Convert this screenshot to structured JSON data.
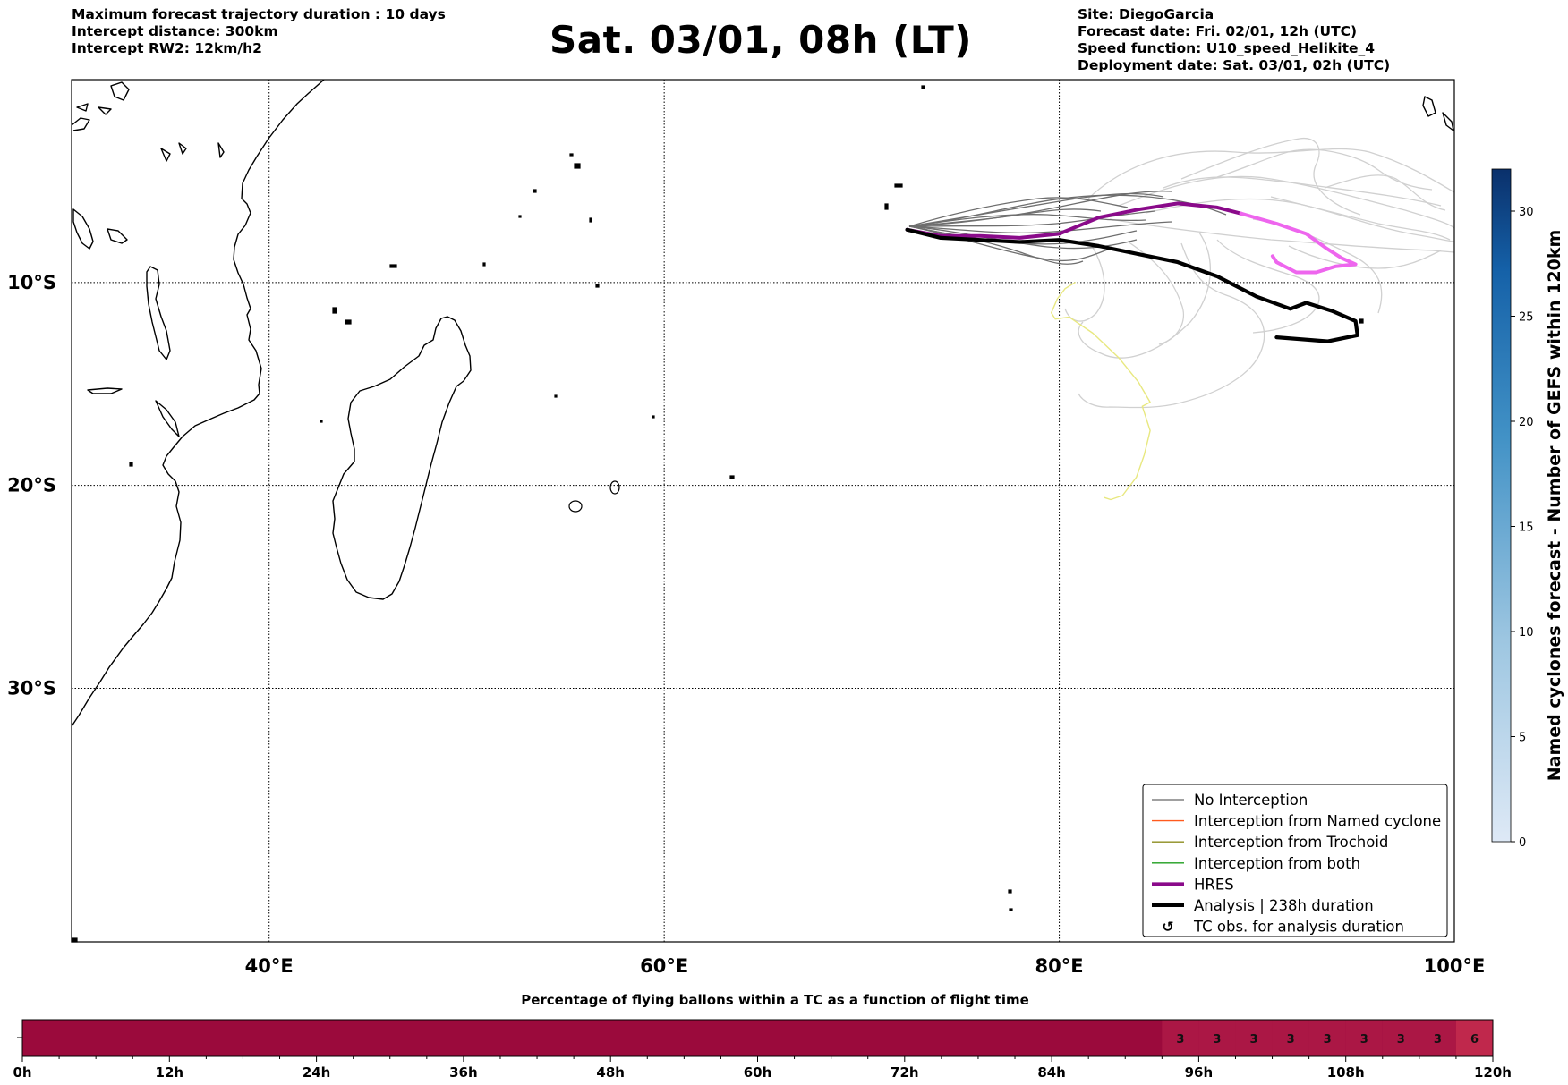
{
  "header": {
    "title": "Sat. 03/01, 08h (LT)",
    "left_lines": [
      "Maximum forecast trajectory duration : 10 days",
      "Intercept distance: 300km",
      "Intercept RW2: 12km/h2"
    ],
    "right_lines": [
      "Site: DiegoGarcia",
      "Forecast date: Fri. 02/01, 12h (UTC)",
      "Speed function: U10_speed_Helikite_4",
      "Deployment date: Sat. 03/01, 02h (UTC)"
    ]
  },
  "chart_data": [
    {
      "type": "map",
      "lon_range": [
        30,
        100
      ],
      "lat_range": [
        -42.5,
        0
      ],
      "x_ticks": [
        {
          "value": 40,
          "label": "40°E"
        },
        {
          "value": 60,
          "label": "60°E"
        },
        {
          "value": 80,
          "label": "80°E"
        },
        {
          "value": 100,
          "label": "100°E"
        }
      ],
      "y_ticks": [
        {
          "value": -10,
          "label": "10°S"
        },
        {
          "value": -20,
          "label": "20°S"
        },
        {
          "value": -30,
          "label": "30°S"
        }
      ],
      "gridlines": true,
      "legend": {
        "placement": "bottom-right",
        "items": [
          {
            "label": "No Interception",
            "color": "#808080",
            "style": "thin-line"
          },
          {
            "label": "Interception from Named cyclone",
            "color": "#ff5a1e",
            "style": "thin-line"
          },
          {
            "label": "Interception from Trochoid",
            "color": "#8c8c1e",
            "style": "thin-line"
          },
          {
            "label": "Interception from both",
            "color": "#1e9e1e",
            "style": "thin-line"
          },
          {
            "label": "HRES",
            "color": "#8a0a8a",
            "style": "thick-line"
          },
          {
            "label": "Analysis | 238h duration",
            "color": "#000000",
            "style": "thick-line"
          },
          {
            "label": "TC obs. for analysis duration",
            "color": "#000000",
            "style": "symbol",
            "symbol": "↺"
          }
        ]
      },
      "series": [
        {
          "name": "HRES",
          "color": "#8a0a8a",
          "points": [
            [
              72.3,
              -7.4
            ],
            [
              74,
              -7.7
            ],
            [
              76,
              -7.7
            ],
            [
              78,
              -7.8
            ],
            [
              80,
              -7.6
            ],
            [
              82,
              -6.8
            ],
            [
              84,
              -6.4
            ],
            [
              86,
              -6.1
            ],
            [
              88,
              -6.3
            ],
            [
              89.2,
              -6.6
            ]
          ]
        },
        {
          "name": "HRES (after TC window)",
          "color": "#ee66ee",
          "points": [
            [
              89.2,
              -6.6
            ],
            [
              91,
              -7.1
            ],
            [
              92.5,
              -7.6
            ],
            [
              93.5,
              -8.3
            ],
            [
              94.3,
              -8.8
            ],
            [
              95,
              -9.1
            ],
            [
              94,
              -9.2
            ],
            [
              93,
              -9.5
            ],
            [
              92,
              -9.5
            ],
            [
              91,
              -9.0
            ],
            [
              90.8,
              -8.7
            ]
          ]
        },
        {
          "name": "Analysis",
          "color": "#000000",
          "points": [
            [
              72.3,
              -7.4
            ],
            [
              74,
              -7.8
            ],
            [
              76,
              -7.9
            ],
            [
              78,
              -8.0
            ],
            [
              80,
              -7.9
            ],
            [
              82,
              -8.2
            ],
            [
              84,
              -8.6
            ],
            [
              86,
              -9.0
            ],
            [
              88,
              -9.7
            ],
            [
              90,
              -10.7
            ],
            [
              91.7,
              -11.3
            ],
            [
              92.5,
              -11.0
            ],
            [
              93.8,
              -11.4
            ],
            [
              95,
              -11.9
            ],
            [
              95.1,
              -12.6
            ],
            [
              93.6,
              -12.9
            ],
            [
              91,
              -12.7
            ]
          ]
        },
        {
          "name": "Yellow trajectory",
          "color": "#e8e880",
          "points": [
            [
              80.8,
              -10.0
            ],
            [
              80.3,
              -10.3
            ],
            [
              79.9,
              -10.8
            ],
            [
              79.6,
              -11.5
            ],
            [
              79.8,
              -11.8
            ],
            [
              80.5,
              -11.7
            ],
            [
              81.7,
              -12.5
            ],
            [
              83,
              -13.7
            ],
            [
              84,
              -14.9
            ],
            [
              84.6,
              -15.9
            ],
            [
              84.2,
              -16.1
            ],
            [
              84.6,
              -17.3
            ],
            [
              84.3,
              -18.5
            ],
            [
              83.9,
              -19.6
            ],
            [
              83.2,
              -20.5
            ],
            [
              82.6,
              -20.7
            ],
            [
              82.3,
              -20.6
            ]
          ]
        }
      ]
    },
    {
      "type": "heatmap",
      "title": "Percentage of flying ballons within a TC as a function of flight time",
      "x_range_hours": [
        0,
        120
      ],
      "x_tick_labels": [
        "0h",
        "12h",
        "24h",
        "36h",
        "48h",
        "60h",
        "72h",
        "84h",
        "96h",
        "108h",
        "120h"
      ],
      "cell_width_hours": 3,
      "labeled_cells": [
        {
          "start_h": 93,
          "value": "3"
        },
        {
          "start_h": 96,
          "value": "3"
        },
        {
          "start_h": 99,
          "value": "3"
        },
        {
          "start_h": 102,
          "value": "3"
        },
        {
          "start_h": 105,
          "value": "3"
        },
        {
          "start_h": 108,
          "value": "3"
        },
        {
          "start_h": 111,
          "value": "3"
        },
        {
          "start_h": 114,
          "value": "3"
        },
        {
          "start_h": 117,
          "value": "6"
        }
      ],
      "colors": {
        "base": "#9b0a3c",
        "low": "#ab1745",
        "high": "#c0284c"
      }
    },
    {
      "type": "colorbar",
      "label": "Named cyclones forecast - Number of GEFS within 120km",
      "range": [
        0,
        32
      ],
      "ticks": [
        0,
        5,
        10,
        15,
        20,
        25,
        30
      ],
      "colors": {
        "min": "#dee9f6",
        "max": "#0a306b"
      }
    }
  ]
}
